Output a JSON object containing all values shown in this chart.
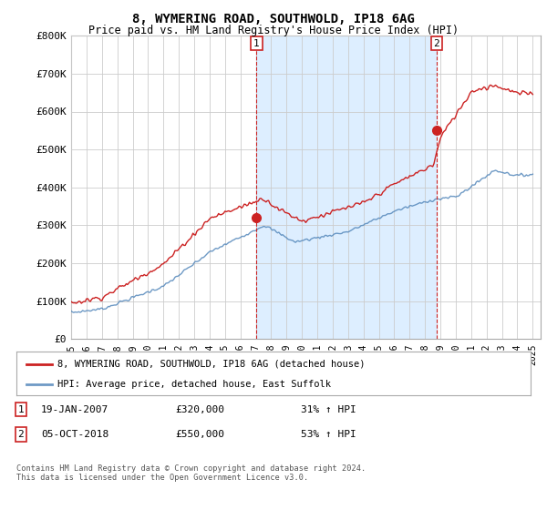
{
  "title": "8, WYMERING ROAD, SOUTHWOLD, IP18 6AG",
  "subtitle": "Price paid vs. HM Land Registry's House Price Index (HPI)",
  "ylabel_ticks": [
    "£0",
    "£100K",
    "£200K",
    "£300K",
    "£400K",
    "£500K",
    "£600K",
    "£700K",
    "£800K"
  ],
  "ylim": [
    0,
    800000
  ],
  "xlim_start": 1995.0,
  "xlim_end": 2025.5,
  "sale1_x": 2007.05,
  "sale1_y": 320000,
  "sale1_label": "1",
  "sale2_x": 2018.75,
  "sale2_y": 550000,
  "sale2_label": "2",
  "hpi_color": "#5588bb",
  "hpi_alpha": 0.85,
  "price_color": "#cc2222",
  "sale_dot_color": "#cc2222",
  "vline_color": "#cc2222",
  "shade_color": "#ddeeff",
  "legend_label1": "8, WYMERING ROAD, SOUTHWOLD, IP18 6AG (detached house)",
  "legend_label2": "HPI: Average price, detached house, East Suffolk",
  "note1_label": "1",
  "note1_date": "19-JAN-2007",
  "note1_price": "£320,000",
  "note1_hpi": "31% ↑ HPI",
  "note2_label": "2",
  "note2_date": "05-OCT-2018",
  "note2_price": "£550,000",
  "note2_hpi": "53% ↑ HPI",
  "footer": "Contains HM Land Registry data © Crown copyright and database right 2024.\nThis data is licensed under the Open Government Licence v3.0.",
  "background_color": "#ffffff",
  "grid_color": "#cccccc"
}
